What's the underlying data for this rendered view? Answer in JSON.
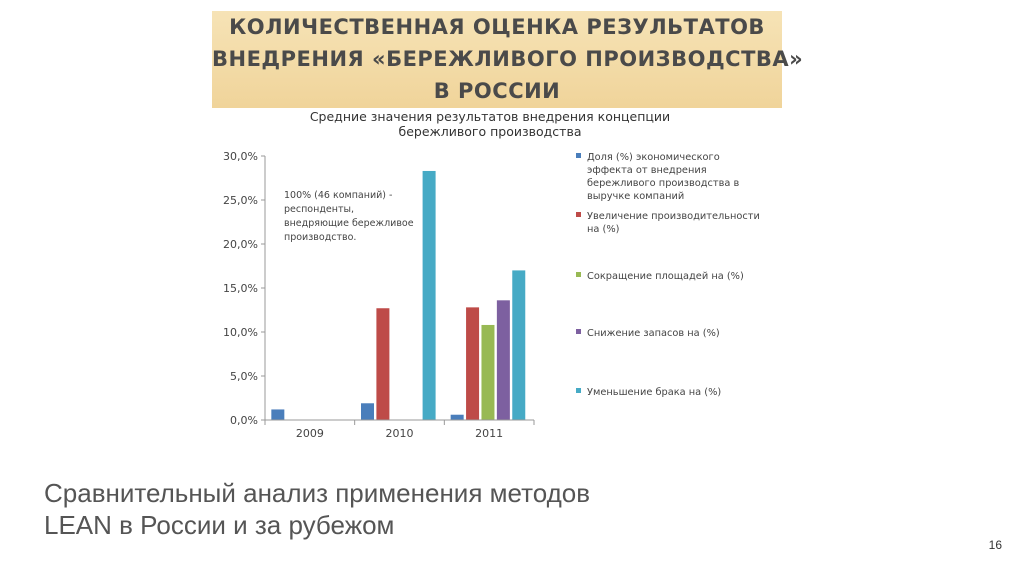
{
  "slide": {
    "title_lines": [
      "КОЛИЧЕСТВЕННАЯ ОЦЕНКА РЕЗУЛЬТАТОВ",
      "ВНЕДРЕНИЯ «БЕРЕЖЛИВОГО ПРОИЗВОДСТВА»",
      "В РОССИИ"
    ],
    "caption_lines": [
      "Сравнительный анализ применения методов",
      "LEAN в России и за рубежом"
    ],
    "page_number": "16"
  },
  "chart_data": {
    "type": "bar",
    "title_lines": [
      "Средние значения результатов внедрения концепции",
      "бережливого производства"
    ],
    "annotation_lines": [
      "100% (46 компаний) -",
      "респонденты,",
      "внедряющие бережливое",
      "производство."
    ],
    "categories": [
      "2009",
      "2010",
      "2011"
    ],
    "yticks": [
      "0,0%",
      "5,0%",
      "10,0%",
      "15,0%",
      "20,0%",
      "25,0%",
      "30,0%"
    ],
    "ylim": [
      0,
      30
    ],
    "legend_position": "right",
    "series": [
      {
        "name_lines": [
          "Доля (%) экономического",
          "эффекта от внедрения",
          "бережливого производства в",
          "выручке компаний"
        ],
        "color": "#4a7ebb",
        "values": [
          1.2,
          1.9,
          0.6
        ]
      },
      {
        "name_lines": [
          "Увеличение производительности",
          "на (%)"
        ],
        "color": "#be4b48",
        "values": [
          null,
          12.7,
          12.8
        ]
      },
      {
        "name_lines": [
          "Сокращение площадей на (%)"
        ],
        "color": "#98b954",
        "values": [
          null,
          null,
          10.8
        ]
      },
      {
        "name_lines": [
          "Снижение запасов на (%)"
        ],
        "color": "#7d60a0",
        "values": [
          null,
          null,
          13.6
        ]
      },
      {
        "name_lines": [
          "Уменьшение брака на (%)"
        ],
        "color": "#46aac5",
        "values": [
          null,
          28.3,
          17.0
        ]
      }
    ]
  }
}
